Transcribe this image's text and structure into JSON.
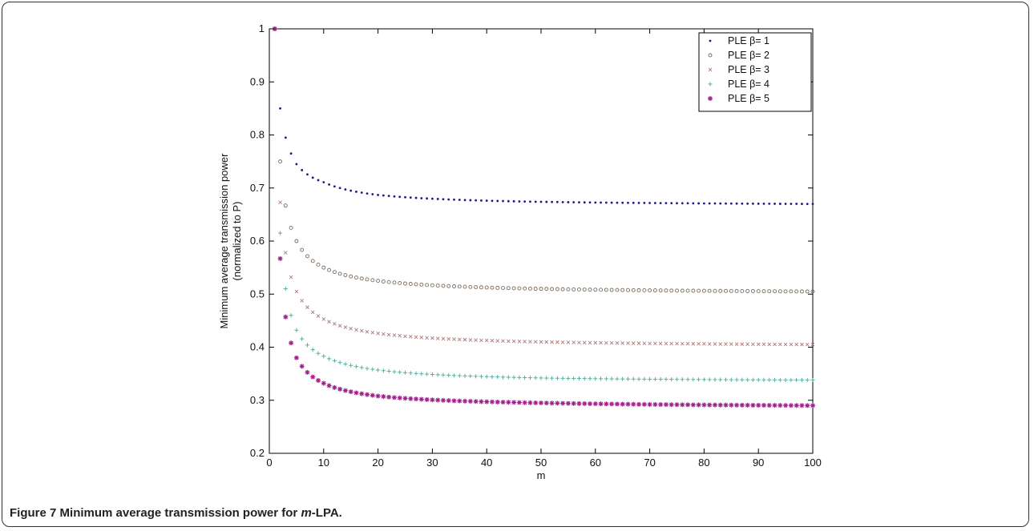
{
  "caption": {
    "label": "Figure 7",
    "text_pre": " Minimum average transmission power for ",
    "text_italic": "m",
    "text_post": "-LPA."
  },
  "chart_data": {
    "type": "scatter",
    "xlabel": "m",
    "ylabel_line1": "Minimum average transmission power",
    "ylabel_line2": "(normalized to P)",
    "xlim": [
      0,
      100
    ],
    "ylim": [
      0.2,
      1
    ],
    "xticks": [
      0,
      10,
      20,
      30,
      40,
      50,
      60,
      70,
      80,
      90,
      100
    ],
    "yticks": [
      0.2,
      0.3,
      0.4,
      0.5,
      0.6,
      0.7,
      0.8,
      0.9,
      1
    ],
    "ytick_labels": [
      "0.2",
      "0.3",
      "0.4",
      "0.5",
      "0.6",
      "0.7",
      "0.8",
      "0.9",
      "1"
    ],
    "grid": false,
    "legend_position": "top-right",
    "x": "1..100",
    "series": [
      {
        "name": "PLE β= 1",
        "marker": "dot",
        "color": "#1a1a8c",
        "asymptote": 0.667,
        "values_at": {
          "1": 1.0,
          "2": 0.85,
          "3": 0.795,
          "4": 0.765,
          "5": 0.745,
          "10": 0.711,
          "20": 0.687,
          "50": 0.674,
          "100": 0.67
        }
      },
      {
        "name": "PLE β= 2",
        "marker": "circle",
        "color": "#7a6a5a",
        "asymptote": 0.5,
        "values_at": {
          "1": 1.0,
          "2": 0.75,
          "3": 0.667,
          "4": 0.625,
          "5": 0.6,
          "10": 0.55,
          "20": 0.525,
          "50": 0.51,
          "100": 0.505
        }
      },
      {
        "name": "PLE β= 3",
        "marker": "x",
        "color": "#b07a7a",
        "asymptote": 0.4,
        "values_at": {
          "1": 1.0,
          "2": 0.673,
          "3": 0.578,
          "4": 0.532,
          "5": 0.505,
          "10": 0.453,
          "20": 0.426,
          "50": 0.41,
          "100": 0.405
        }
      },
      {
        "name": "PLE β= 4",
        "marker": "plus",
        "color": "#4aaa9a",
        "asymptote": 0.333,
        "values_at": {
          "1": 1.0,
          "2": 0.615,
          "3": 0.51,
          "4": 0.46,
          "5": 0.432,
          "10": 0.383,
          "20": 0.357,
          "50": 0.342,
          "100": 0.338
        }
      },
      {
        "name": "PLE β= 5",
        "marker": "star",
        "color": "#a0208c",
        "asymptote": 0.2857,
        "values_at": {
          "1": 1.0,
          "2": 0.567,
          "3": 0.457,
          "4": 0.408,
          "5": 0.38,
          "10": 0.332,
          "20": 0.308,
          "50": 0.295,
          "100": 0.29
        }
      }
    ]
  }
}
